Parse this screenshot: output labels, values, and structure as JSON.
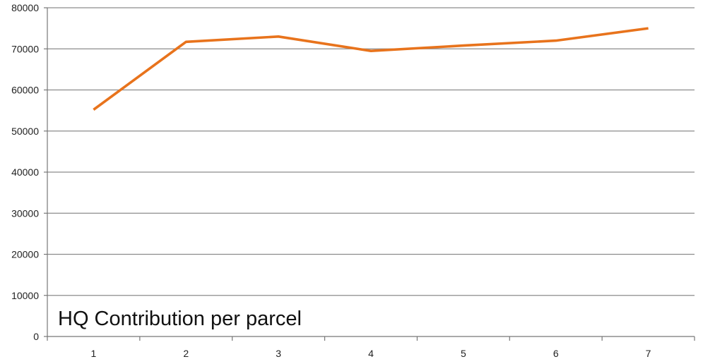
{
  "chart_data": {
    "type": "line",
    "title": "HQ Contribution per parcel",
    "xlabel": "",
    "ylabel": "",
    "categories": [
      "1",
      "2",
      "3",
      "4",
      "5",
      "6",
      "7"
    ],
    "series": [
      {
        "values": [
          55200,
          71700,
          73000,
          69500,
          70800,
          72000,
          75000
        ],
        "color": "#e8731c"
      }
    ],
    "y_ticks": [
      "0",
      "10000",
      "20000",
      "30000",
      "40000",
      "50000",
      "60000",
      "70000",
      "80000"
    ],
    "ylim": [
      0,
      80000
    ],
    "grid": true,
    "legend": "none"
  }
}
